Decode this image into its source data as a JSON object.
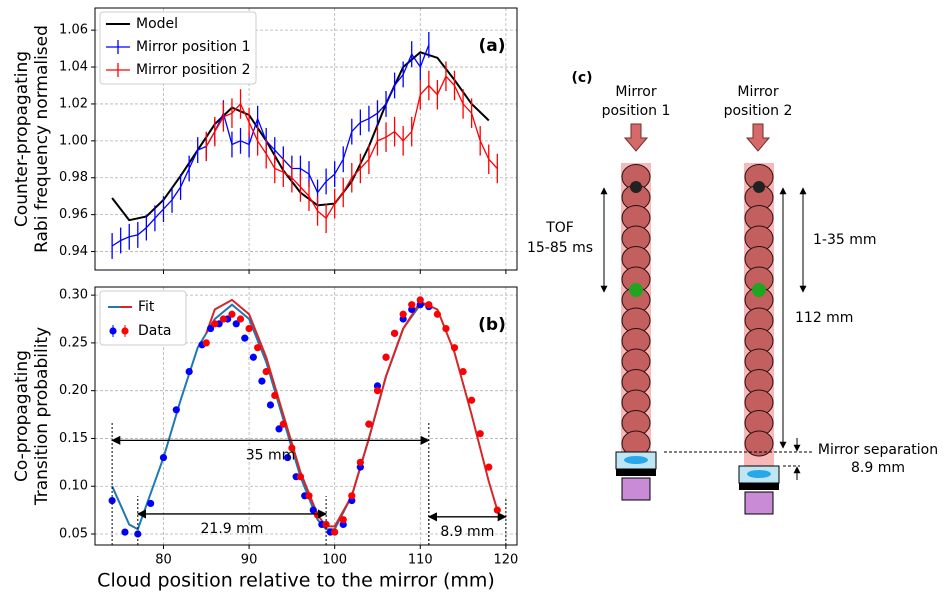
{
  "chart_data": [
    {
      "type": "line",
      "panel_label": "(a)",
      "ylabel": [
        "Counter-propagating",
        "Rabi frequency normalised"
      ],
      "xlim": [
        72,
        121.3
      ],
      "xticks": [
        80,
        90,
        100,
        110,
        120
      ],
      "xticklabels": false,
      "ylim": [
        0.93,
        1.072
      ],
      "yticks": [
        0.94,
        0.96,
        0.98,
        {
          "value": 1,
          "label": "1.00"
        },
        1.02,
        1.04,
        1.06
      ],
      "grid": true,
      "legend": "upper left",
      "series": [
        {
          "name": "Model",
          "color": "#000000",
          "kind": "line",
          "x": [
            74,
            76,
            78,
            80,
            82,
            84,
            86,
            88,
            90,
            92,
            94,
            96,
            98,
            100,
            102,
            104,
            106,
            108,
            110,
            112,
            114,
            116,
            118
          ],
          "values": [
            0.969,
            0.957,
            0.959,
            0.968,
            0.981,
            0.995,
            1.009,
            1.018,
            1.014,
            1.0,
            0.984,
            0.972,
            0.965,
            0.966,
            0.978,
            0.997,
            1.02,
            1.04,
            1.048,
            1.045,
            1.033,
            1.02,
            1.011
          ]
        },
        {
          "name": "Mirror position 1",
          "color": "#0000ff",
          "kind": "errorbar",
          "error": 0.007,
          "x": [
            74,
            75,
            76,
            77,
            78,
            79,
            80,
            81,
            82,
            83,
            84,
            85,
            86,
            87,
            88,
            89,
            90,
            91,
            92,
            93,
            94,
            95,
            96,
            97,
            98,
            99,
            100,
            101,
            102,
            103,
            104,
            105,
            106,
            107,
            108,
            109,
            110,
            111
          ],
          "values": [
            0.943,
            0.946,
            0.948,
            0.949,
            0.953,
            0.958,
            0.963,
            0.968,
            0.975,
            0.985,
            0.995,
            0.997,
            1.005,
            1.015,
            0.998,
            1.0,
            0.998,
            1.012,
            1.0,
            0.995,
            0.99,
            0.985,
            0.985,
            0.982,
            0.972,
            0.978,
            0.982,
            0.99,
            1.005,
            1.01,
            1.012,
            1.015,
            1.02,
            1.03,
            1.036,
            1.047,
            1.04,
            1.052
          ]
        },
        {
          "name": "Mirror position 2",
          "color": "#ff0000",
          "kind": "errorbar",
          "error": 0.008,
          "x": [
            85,
            86,
            87,
            88,
            89,
            90,
            91,
            92,
            93,
            94,
            95,
            96,
            97,
            98,
            99,
            100,
            101,
            102,
            103,
            104,
            105,
            106,
            107,
            108,
            109,
            110,
            111,
            112,
            113,
            114,
            115,
            116,
            117,
            118,
            119
          ],
          "values": [
            0.997,
            1.005,
            1.013,
            1.015,
            1.02,
            1.01,
            1.0,
            0.993,
            0.985,
            0.983,
            0.98,
            0.975,
            0.97,
            0.962,
            0.958,
            0.966,
            0.972,
            0.98,
            0.985,
            0.99,
            1.0,
            1.002,
            1.005,
            1.0,
            1.005,
            1.025,
            1.03,
            1.025,
            1.035,
            1.03,
            1.02,
            1.015,
            1.0,
            0.99,
            0.985
          ]
        }
      ]
    },
    {
      "type": "line",
      "panel_label": "(b)",
      "ylabel": [
        "Co-propagating",
        "Transition probability"
      ],
      "xlabel": "Cloud position relative to the mirror (mm)",
      "xlim": [
        72,
        121.3
      ],
      "xticks": [
        80,
        90,
        100,
        110,
        120
      ],
      "xticklabels": true,
      "ylim": [
        0.0385,
        0.3085
      ],
      "yticks": [
        0.05,
        {
          "value": 0.1,
          "label": "0.10"
        },
        0.15,
        {
          "value": 0.2,
          "label": "0.20"
        },
        0.25,
        {
          "value": 0.3,
          "label": "0.30"
        }
      ],
      "grid": true,
      "legend": "upper left",
      "legend_labels": [
        "Fit",
        "Data"
      ],
      "series": [
        {
          "color": "#1f77b4",
          "kind": "line",
          "x": [
            74,
            75,
            76,
            77,
            78,
            80,
            82,
            84,
            86,
            88,
            90,
            92,
            94,
            96,
            98,
            99,
            100,
            102,
            104,
            106,
            108,
            110,
            111
          ],
          "values": [
            0.1,
            0.08,
            0.06,
            0.055,
            0.08,
            0.13,
            0.19,
            0.245,
            0.275,
            0.29,
            0.275,
            0.23,
            0.17,
            0.11,
            0.065,
            0.055,
            0.055,
            0.09,
            0.15,
            0.215,
            0.265,
            0.29,
            0.29
          ]
        },
        {
          "color": "#d62728",
          "kind": "line",
          "x": [
            85,
            86,
            88,
            90,
            92,
            94,
            96,
            98,
            99,
            100,
            102,
            104,
            106,
            108,
            110,
            112,
            114,
            116,
            118,
            119
          ],
          "values": [
            0.26,
            0.285,
            0.295,
            0.28,
            0.235,
            0.175,
            0.115,
            0.07,
            0.058,
            0.058,
            0.09,
            0.15,
            0.215,
            0.265,
            0.293,
            0.285,
            0.24,
            0.175,
            0.105,
            0.075
          ]
        },
        {
          "color": "#0000ff",
          "kind": "points",
          "x": [
            74,
            75.5,
            77,
            78.5,
            80,
            81.5,
            83,
            84.5,
            85.5,
            86.5,
            87.5,
            88.5,
            89.5,
            90.5,
            91.5,
            92.5,
            93.5,
            94.5,
            95.5,
            96.5,
            97.5,
            98.5,
            99.5,
            101,
            102,
            103,
            104,
            105,
            106,
            107,
            108,
            109,
            110,
            111
          ],
          "values": [
            0.085,
            0.052,
            0.05,
            0.082,
            0.13,
            0.18,
            0.22,
            0.248,
            0.265,
            0.27,
            0.275,
            0.27,
            0.255,
            0.235,
            0.21,
            0.185,
            0.16,
            0.13,
            0.11,
            0.09,
            0.075,
            0.06,
            0.052,
            0.06,
            0.085,
            0.12,
            0.165,
            0.205,
            0.235,
            0.26,
            0.275,
            0.285,
            0.29,
            0.288
          ]
        },
        {
          "color": "#ff0000",
          "kind": "points",
          "x": [
            85,
            86,
            87,
            88,
            89,
            90,
            91,
            92,
            93,
            94,
            95,
            96,
            97,
            98,
            99,
            100,
            101,
            102,
            103,
            104,
            105,
            106,
            107,
            108,
            109,
            110,
            111,
            112,
            113,
            114,
            115,
            116,
            117,
            118,
            119
          ],
          "values": [
            0.25,
            0.27,
            0.275,
            0.28,
            0.275,
            0.265,
            0.245,
            0.22,
            0.195,
            0.165,
            0.14,
            0.11,
            0.09,
            0.07,
            0.06,
            0.052,
            0.065,
            0.09,
            0.125,
            0.165,
            0.2,
            0.235,
            0.26,
            0.28,
            0.29,
            0.295,
            0.29,
            0.28,
            0.265,
            0.245,
            0.22,
            0.19,
            0.155,
            0.12,
            0.075
          ]
        }
      ],
      "annotations": [
        {
          "text": "35 mm",
          "x": [
            74,
            111
          ],
          "y": 0.148
        },
        {
          "text": "21.9 mm",
          "x": [
            77,
            99
          ],
          "y": 0.071
        },
        {
          "text": "8.9 mm",
          "x": [
            111,
            120
          ],
          "y": 0.068
        }
      ]
    }
  ],
  "diagram": {
    "panel_label": "(c)",
    "mirror1": [
      "Mirror",
      "position 1"
    ],
    "mirror2": [
      "Mirror",
      "position 2"
    ],
    "tof": [
      "TOF",
      "15-85 ms"
    ],
    "short_drop": "1-35 mm",
    "long_drop": "112 mm",
    "separation": [
      "Mirror separation",
      "8.9 mm"
    ]
  }
}
